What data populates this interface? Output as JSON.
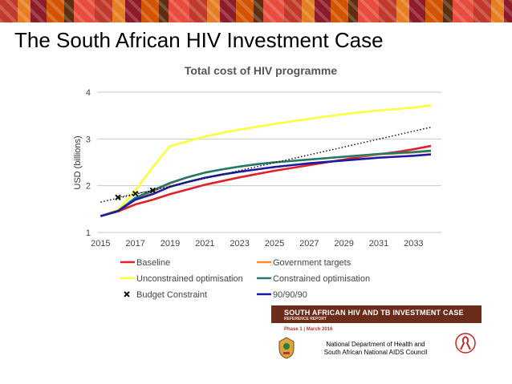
{
  "slide": {
    "title": "The South African HIV Investment Case"
  },
  "report": {
    "title": "SOUTH AFRICAN HIV AND TB INVESTMENT CASE",
    "subtitle": "REFERENCE REPORT",
    "phase": "Phase 1 | March 2016",
    "credit": "National Department of Health and South African National AIDS Council"
  },
  "colors": {
    "baseline": "#e0202a",
    "government_targets": "#f28e2b",
    "unconstrained": "#ffff3d",
    "constrained": "#1f7a6d",
    "budget": "#111111",
    "ninety": "#1c1aa6",
    "gridline": "#c8c8c8"
  },
  "chart_data": {
    "type": "line",
    "title": "Total cost of HIV programme",
    "xlabel": "",
    "ylabel": "USD (billions)",
    "xlim": [
      2014.8,
      2034.6
    ],
    "ylim": [
      1,
      4
    ],
    "xticks": [
      "2015",
      "2017",
      "2019",
      "2021",
      "2023",
      "2025",
      "2027",
      "2029",
      "2031",
      "2033"
    ],
    "yticks": [
      "1",
      "2",
      "3",
      "4"
    ],
    "grid": true,
    "legend_position": "bottom",
    "series": [
      {
        "name": "Baseline",
        "color_key": "baseline",
        "style": "line",
        "x": [
          2015,
          2016,
          2017,
          2018,
          2019,
          2020,
          2021,
          2022,
          2023,
          2024,
          2025,
          2026,
          2027,
          2028,
          2029,
          2030,
          2031,
          2032,
          2033,
          2034
        ],
        "y": [
          1.35,
          1.45,
          1.6,
          1.7,
          1.82,
          1.92,
          2.02,
          2.1,
          2.18,
          2.25,
          2.32,
          2.38,
          2.44,
          2.5,
          2.56,
          2.62,
          2.67,
          2.72,
          2.78,
          2.85
        ]
      },
      {
        "name": "Government targets",
        "color_key": "government_targets",
        "style": "line",
        "x": [
          2015,
          2016,
          2017,
          2018,
          2019,
          2020,
          2021,
          2022,
          2023,
          2024,
          2025,
          2026,
          2027,
          2028,
          2029,
          2030,
          2031,
          2032,
          2033,
          2034
        ],
        "y": [
          1.35,
          1.46,
          1.72,
          1.88,
          2.05,
          2.18,
          2.28,
          2.35,
          2.41,
          2.46,
          2.5,
          2.53,
          2.56,
          2.59,
          2.62,
          2.64,
          2.67,
          2.69,
          2.71,
          2.74
        ]
      },
      {
        "name": "Unconstrained optimisation",
        "color_key": "unconstrained",
        "style": "line",
        "x": [
          2015,
          2016,
          2017,
          2018,
          2019,
          2020,
          2021,
          2022,
          2023,
          2024,
          2025,
          2026,
          2027,
          2028,
          2029,
          2030,
          2031,
          2032,
          2033,
          2034
        ],
        "y": [
          1.35,
          1.48,
          1.9,
          2.4,
          2.85,
          2.95,
          3.05,
          3.13,
          3.2,
          3.26,
          3.32,
          3.38,
          3.43,
          3.48,
          3.53,
          3.57,
          3.61,
          3.64,
          3.67,
          3.72
        ]
      },
      {
        "name": "Constrained optimisation",
        "color_key": "constrained",
        "style": "line",
        "x": [
          2015,
          2016,
          2017,
          2018,
          2019,
          2020,
          2021,
          2022,
          2023,
          2024,
          2025,
          2026,
          2027,
          2028,
          2029,
          2030,
          2031,
          2032,
          2033,
          2034
        ],
        "y": [
          1.35,
          1.46,
          1.74,
          1.9,
          2.06,
          2.18,
          2.28,
          2.35,
          2.41,
          2.46,
          2.5,
          2.53,
          2.56,
          2.59,
          2.62,
          2.65,
          2.68,
          2.7,
          2.72,
          2.75
        ]
      },
      {
        "name": "Budget Constraint",
        "color_key": "budget",
        "style": "marker",
        "x": [
          2016,
          2017,
          2018
        ],
        "y": [
          1.75,
          1.83,
          1.9
        ]
      },
      {
        "name": "90/90/90",
        "color_key": "ninety",
        "style": "line",
        "x": [
          2015,
          2016,
          2017,
          2018,
          2019,
          2020,
          2021,
          2022,
          2023,
          2024,
          2025,
          2026,
          2027,
          2028,
          2029,
          2030,
          2031,
          2032,
          2033,
          2034
        ],
        "y": [
          1.35,
          1.46,
          1.7,
          1.82,
          1.98,
          2.08,
          2.17,
          2.24,
          2.3,
          2.35,
          2.4,
          2.44,
          2.48,
          2.51,
          2.54,
          2.57,
          2.6,
          2.62,
          2.64,
          2.67
        ]
      },
      {
        "name": "",
        "color_key": "budget",
        "style": "dotted-trend",
        "x": [
          2015,
          2034
        ],
        "y": [
          1.65,
          3.25
        ]
      }
    ]
  }
}
